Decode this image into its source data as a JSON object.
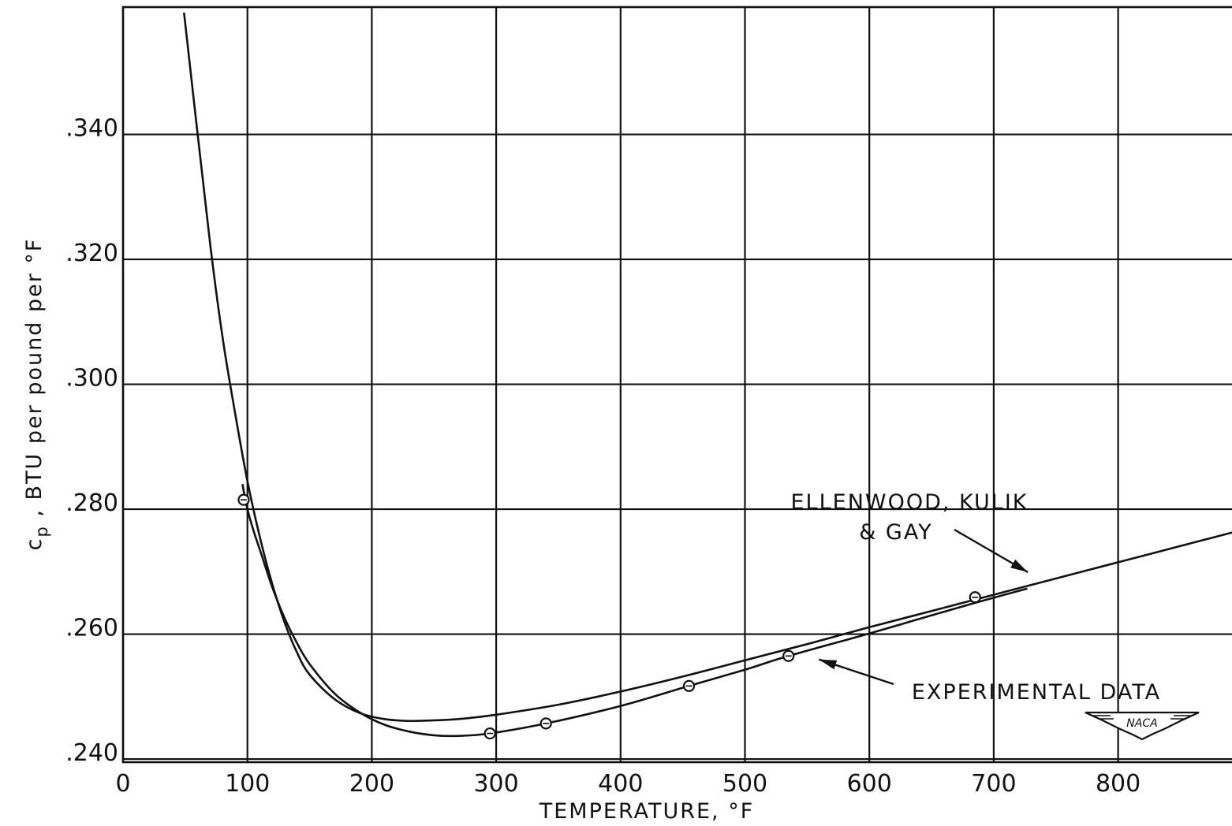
{
  "chart_data": {
    "type": "line",
    "title": "",
    "xlabel": "TEMPERATURE, °F",
    "ylabel_main": "c",
    "ylabel_sub": "p",
    "ylabel_rest": " , BTU per pound per °F",
    "xlim": [
      0,
      900
    ],
    "ylim": [
      0.2395,
      0.3595
    ],
    "x_ticks": [
      0,
      100,
      200,
      300,
      400,
      500,
      600,
      700,
      800
    ],
    "x_tick_labels": [
      "0",
      "100",
      "200",
      "300",
      "400",
      "500",
      "600",
      "700",
      "800"
    ],
    "y_ticks": [
      0.24,
      0.26,
      0.28,
      0.3,
      0.32,
      0.34
    ],
    "y_tick_labels": [
      ".240",
      ".260",
      ".280",
      ".300",
      ".320",
      ".340"
    ],
    "grid": true,
    "series": [
      {
        "name": "ELLENWOOD, KULIK & GAY",
        "style": "line",
        "x": [
          49,
          60,
          70,
          80,
          90,
          100,
          110,
          120,
          130,
          140,
          150,
          170,
          190,
          210,
          230,
          250,
          270,
          300,
          350,
          400,
          450,
          500,
          550,
          600,
          650,
          700,
          750,
          800,
          850,
          900
        ],
        "y": [
          0.3595,
          0.34,
          0.3225,
          0.3075,
          0.2955,
          0.2845,
          0.2755,
          0.268,
          0.2618,
          0.257,
          0.2535,
          0.2496,
          0.2474,
          0.2464,
          0.2461,
          0.2462,
          0.2464,
          0.2471,
          0.2487,
          0.2508,
          0.2532,
          0.2558,
          0.2584,
          0.2611,
          0.2637,
          0.2663,
          0.2689,
          0.2715,
          0.2741,
          0.2767
        ]
      },
      {
        "name": "EXPERIMENTAL DATA",
        "style": "line",
        "x": [
          96,
          100,
          105,
          110,
          120,
          130,
          140,
          150,
          170,
          190,
          210,
          230,
          250,
          270,
          295,
          340,
          400,
          455,
          500,
          535,
          600,
          650,
          685,
          727
        ],
        "y": [
          0.284,
          0.28,
          0.2765,
          0.2735,
          0.2675,
          0.2625,
          0.2585,
          0.2552,
          0.2505,
          0.2475,
          0.2455,
          0.2444,
          0.2438,
          0.2437,
          0.2441,
          0.2457,
          0.2485,
          0.2517,
          0.2543,
          0.2565,
          0.2601,
          0.263,
          0.265,
          0.2673
        ]
      }
    ],
    "data_points": {
      "x": [
        97,
        295,
        340,
        455,
        535,
        685
      ],
      "y": [
        0.2815,
        0.2441,
        0.2457,
        0.2517,
        0.2565,
        0.2659
      ]
    },
    "annotations": [
      {
        "lines": [
          "ELLENWOOD, KULIK",
          "& GAY"
        ],
        "target": [
          730,
          0.2694
        ]
      },
      {
        "lines": [
          "EXPERIMENTAL DATA"
        ],
        "target": [
          557,
          0.2567
        ]
      }
    ],
    "logo_text": "NACA"
  }
}
